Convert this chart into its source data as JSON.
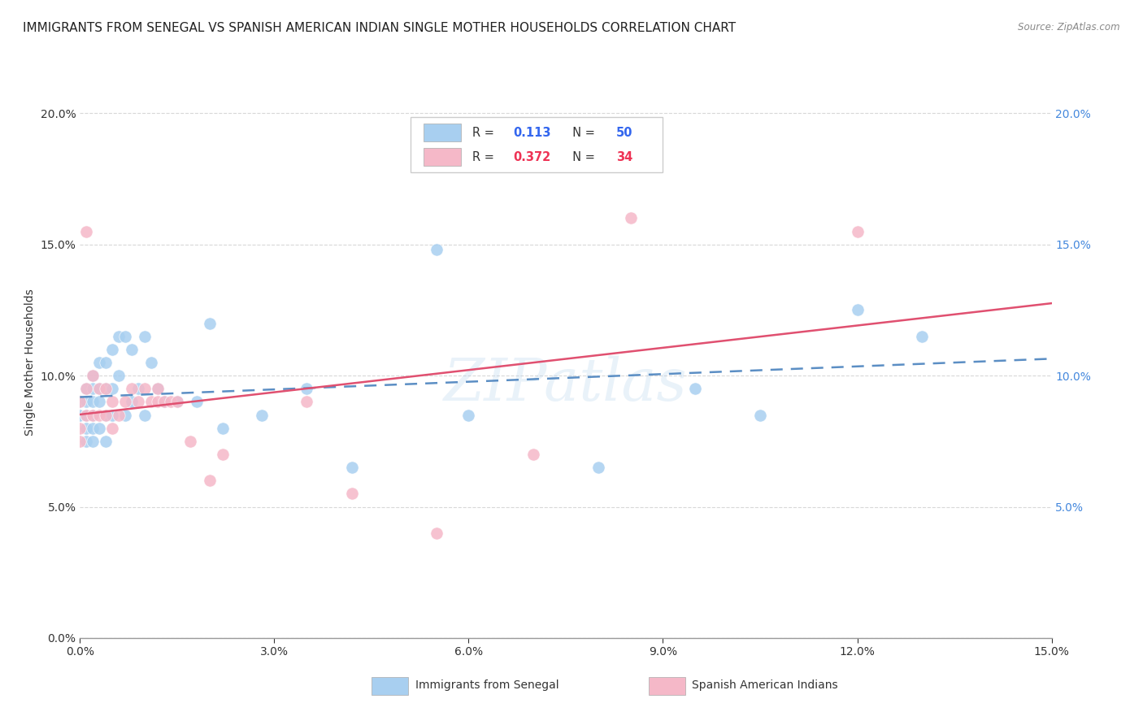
{
  "title": "IMMIGRANTS FROM SENEGAL VS SPANISH AMERICAN INDIAN SINGLE MOTHER HOUSEHOLDS CORRELATION CHART",
  "source": "Source: ZipAtlas.com",
  "ylabel": "Single Mother Households",
  "xlim": [
    0.0,
    0.15
  ],
  "ylim": [
    0.0,
    0.21
  ],
  "yticks_left": [
    0.0,
    0.05,
    0.1,
    0.15,
    0.2
  ],
  "yticks_right": [
    0.05,
    0.1,
    0.15,
    0.2
  ],
  "xticks": [
    0.0,
    0.03,
    0.06,
    0.09,
    0.12,
    0.15
  ],
  "watermark": "ZIPatlas",
  "series1_color": "#a8cff0",
  "series2_color": "#f5b8c8",
  "series1_line_color": "#5b8ec4",
  "series2_line_color": "#e05070",
  "background_color": "#ffffff",
  "grid_color": "#d8d8d8",
  "title_fontsize": 11,
  "axis_label_fontsize": 10,
  "tick_fontsize": 10,
  "right_tick_color": "#4488dd",
  "series1_x": [
    0.0,
    0.0,
    0.001,
    0.001,
    0.001,
    0.001,
    0.001,
    0.002,
    0.002,
    0.002,
    0.002,
    0.002,
    0.002,
    0.003,
    0.003,
    0.003,
    0.003,
    0.004,
    0.004,
    0.004,
    0.004,
    0.005,
    0.005,
    0.005,
    0.006,
    0.006,
    0.007,
    0.007,
    0.008,
    0.008,
    0.009,
    0.01,
    0.01,
    0.011,
    0.012,
    0.013,
    0.015,
    0.018,
    0.02,
    0.022,
    0.028,
    0.035,
    0.042,
    0.055,
    0.06,
    0.08,
    0.095,
    0.105,
    0.12,
    0.13
  ],
  "series1_y": [
    0.09,
    0.085,
    0.095,
    0.09,
    0.085,
    0.08,
    0.075,
    0.1,
    0.095,
    0.09,
    0.085,
    0.08,
    0.075,
    0.105,
    0.095,
    0.09,
    0.08,
    0.105,
    0.095,
    0.085,
    0.075,
    0.11,
    0.095,
    0.085,
    0.115,
    0.1,
    0.115,
    0.085,
    0.11,
    0.09,
    0.095,
    0.115,
    0.085,
    0.105,
    0.095,
    0.09,
    0.09,
    0.09,
    0.12,
    0.08,
    0.085,
    0.095,
    0.065,
    0.148,
    0.085,
    0.065,
    0.095,
    0.085,
    0.125,
    0.115
  ],
  "series2_x": [
    0.0,
    0.0,
    0.0,
    0.001,
    0.001,
    0.001,
    0.002,
    0.002,
    0.003,
    0.003,
    0.004,
    0.004,
    0.005,
    0.005,
    0.006,
    0.007,
    0.008,
    0.009,
    0.01,
    0.011,
    0.012,
    0.012,
    0.013,
    0.014,
    0.015,
    0.017,
    0.02,
    0.022,
    0.035,
    0.042,
    0.055,
    0.07,
    0.085,
    0.12
  ],
  "series2_y": [
    0.09,
    0.08,
    0.075,
    0.155,
    0.095,
    0.085,
    0.1,
    0.085,
    0.095,
    0.085,
    0.095,
    0.085,
    0.09,
    0.08,
    0.085,
    0.09,
    0.095,
    0.09,
    0.095,
    0.09,
    0.095,
    0.09,
    0.09,
    0.09,
    0.09,
    0.075,
    0.06,
    0.07,
    0.09,
    0.055,
    0.04,
    0.07,
    0.16,
    0.155
  ]
}
